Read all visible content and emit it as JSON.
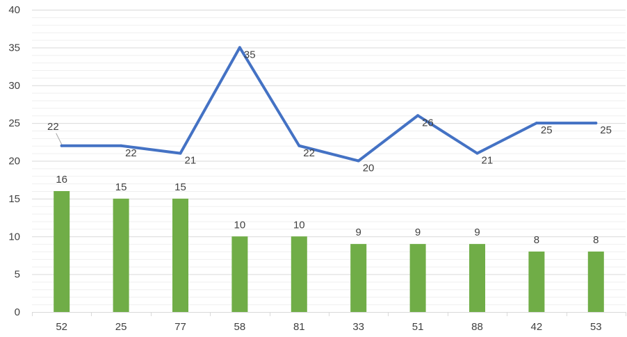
{
  "chart_data": {
    "type": "bar",
    "title": "",
    "xlabel": "",
    "ylabel": "",
    "categories": [
      "52",
      "25",
      "77",
      "58",
      "81",
      "33",
      "51",
      "88",
      "42",
      "53"
    ],
    "series": [
      {
        "type": "bar",
        "values": [
          16,
          15,
          15,
          10,
          10,
          9,
          9,
          9,
          8,
          8
        ],
        "color": "#70ad47"
      },
      {
        "type": "line",
        "values": [
          22,
          22,
          21,
          35,
          22,
          20,
          26,
          21,
          25,
          25
        ],
        "color": "#4472c4"
      }
    ],
    "ylim": [
      0,
      40
    ],
    "y_ticks": [
      "0",
      "5",
      "10",
      "15",
      "20",
      "25",
      "30",
      "35",
      "40"
    ],
    "grid": true,
    "legend": "none"
  }
}
